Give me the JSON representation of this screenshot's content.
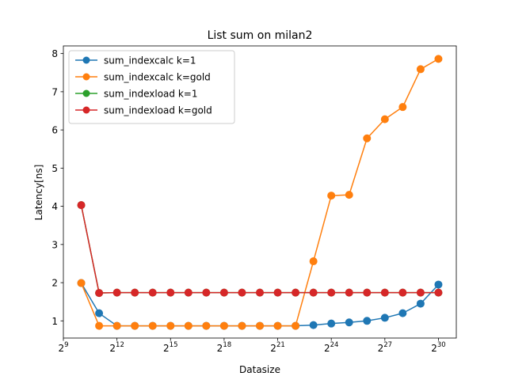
{
  "chart_data": {
    "type": "line",
    "title": "List sum on milan2",
    "xlabel": "Datasize",
    "ylabel": "Latency[ns]",
    "x_scale": "log2",
    "x_exponents": [
      10,
      11,
      12,
      13,
      14,
      15,
      16,
      17,
      18,
      19,
      20,
      21,
      22,
      23,
      24,
      25,
      26,
      27,
      28,
      29,
      30
    ],
    "xlim_exponents": [
      9,
      31
    ],
    "ylim": [
      0.55,
      8.2
    ],
    "x_ticks": [
      {
        "base": "2",
        "exp": "9",
        "value": 9
      },
      {
        "base": "2",
        "exp": "12",
        "value": 12
      },
      {
        "base": "2",
        "exp": "15",
        "value": 15
      },
      {
        "base": "2",
        "exp": "18",
        "value": 18
      },
      {
        "base": "2",
        "exp": "21",
        "value": 21
      },
      {
        "base": "2",
        "exp": "24",
        "value": 24
      },
      {
        "base": "2",
        "exp": "27",
        "value": 27
      },
      {
        "base": "2",
        "exp": "30",
        "value": 30
      }
    ],
    "y_ticks": [
      {
        "label": "1",
        "value": 1
      },
      {
        "label": "2",
        "value": 2
      },
      {
        "label": "3",
        "value": 3
      },
      {
        "label": "4",
        "value": 4
      },
      {
        "label": "5",
        "value": 5
      },
      {
        "label": "6",
        "value": 6
      },
      {
        "label": "7",
        "value": 7
      },
      {
        "label": "8",
        "value": 8
      }
    ],
    "legend_position": "upper-left",
    "grid": false,
    "series": [
      {
        "name": "sum_indexcalc k=1",
        "color": "#1f77b4",
        "values": [
          1.99,
          1.2,
          0.87,
          0.87,
          0.87,
          0.87,
          0.87,
          0.87,
          0.87,
          0.87,
          0.87,
          0.87,
          0.87,
          0.89,
          0.93,
          0.96,
          1.0,
          1.08,
          1.2,
          1.45,
          1.95
        ]
      },
      {
        "name": "sum_indexcalc k=gold",
        "color": "#ff7f0e",
        "values": [
          1.99,
          0.87,
          0.87,
          0.87,
          0.87,
          0.87,
          0.87,
          0.87,
          0.87,
          0.87,
          0.87,
          0.87,
          0.87,
          2.56,
          4.28,
          4.3,
          5.78,
          6.28,
          6.6,
          7.59,
          7.86
        ]
      },
      {
        "name": "sum_indexload k=1",
        "color": "#2ca02c",
        "values": [
          4.03,
          1.73,
          1.74,
          1.74,
          1.74,
          1.74,
          1.74,
          1.74,
          1.74,
          1.74,
          1.74,
          1.74,
          1.74,
          1.74,
          1.74,
          1.74,
          1.74,
          1.74,
          1.74,
          1.74,
          1.74
        ]
      },
      {
        "name": "sum_indexload k=gold",
        "color": "#d62728",
        "values": [
          4.03,
          1.73,
          1.74,
          1.74,
          1.74,
          1.74,
          1.74,
          1.74,
          1.74,
          1.74,
          1.74,
          1.74,
          1.74,
          1.74,
          1.74,
          1.74,
          1.74,
          1.74,
          1.74,
          1.74,
          1.74
        ]
      }
    ]
  }
}
